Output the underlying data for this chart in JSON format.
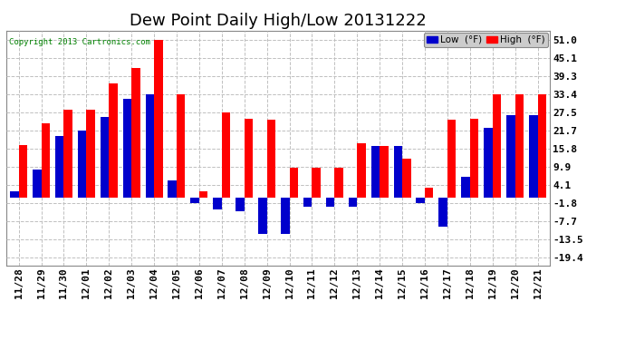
{
  "title": "Dew Point Daily High/Low 20131222",
  "copyright": "Copyright 2013 Cartronics.com",
  "dates": [
    "11/28",
    "11/29",
    "11/30",
    "12/01",
    "12/02",
    "12/03",
    "12/04",
    "12/05",
    "12/06",
    "12/07",
    "12/08",
    "12/09",
    "12/10",
    "12/11",
    "12/12",
    "12/13",
    "12/14",
    "12/15",
    "12/16",
    "12/17",
    "12/18",
    "12/19",
    "12/20",
    "12/21"
  ],
  "high_values": [
    17.0,
    24.0,
    28.5,
    28.5,
    37.0,
    42.0,
    51.0,
    33.4,
    2.0,
    27.5,
    25.5,
    25.0,
    9.5,
    9.5,
    9.5,
    17.5,
    16.5,
    12.5,
    3.0,
    25.0,
    25.5,
    33.4,
    33.4,
    33.4
  ],
  "low_values": [
    2.0,
    9.0,
    20.0,
    21.5,
    26.0,
    32.0,
    33.4,
    5.5,
    -1.8,
    -4.0,
    -4.5,
    -12.0,
    -12.0,
    -3.0,
    -3.0,
    -3.0,
    16.5,
    16.5,
    -1.8,
    -9.5,
    6.5,
    22.5,
    26.5,
    26.5
  ],
  "yticks": [
    51.0,
    45.1,
    39.3,
    33.4,
    27.5,
    21.7,
    15.8,
    9.9,
    4.1,
    -1.8,
    -7.7,
    -13.5,
    -19.4
  ],
  "ylim": [
    -22,
    54
  ],
  "high_color": "#FF0000",
  "low_color": "#0000CC",
  "bg_color": "#FFFFFF",
  "grid_color": "#C0C0C0",
  "bar_width": 0.38,
  "title_fontsize": 13,
  "tick_fontsize": 8,
  "legend_low_label": "Low  (°F)",
  "legend_high_label": "High  (°F)"
}
